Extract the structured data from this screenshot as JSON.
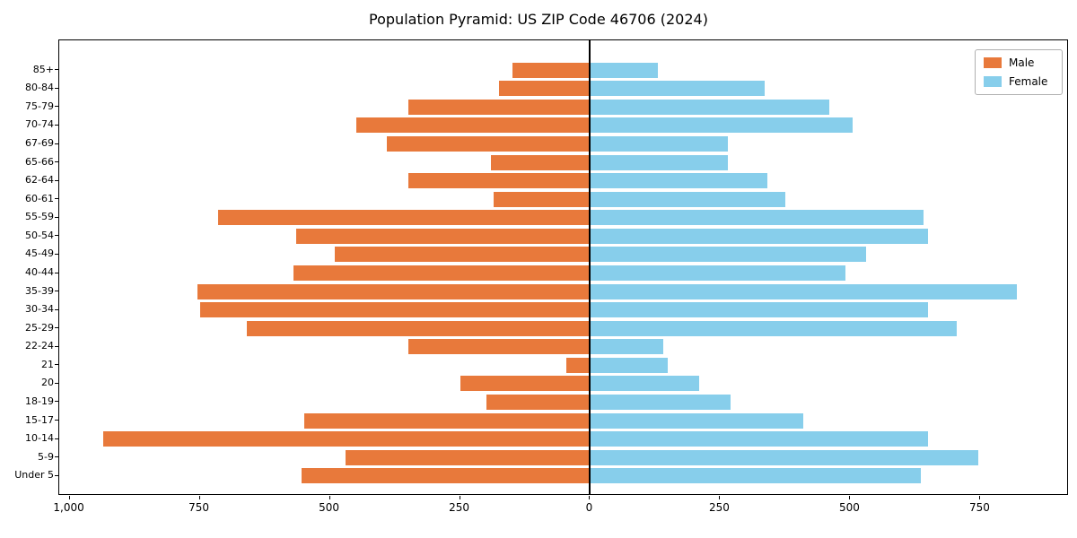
{
  "colors": {
    "male": "#e8793b",
    "female": "#87ceeb",
    "axis": "#000000",
    "legend_border": "#b0b0b0"
  },
  "chart_data": {
    "type": "bar",
    "subtype": "population-pyramid",
    "title": "Population Pyramid: US ZIP Code 46706 (2024)",
    "orientation": "horizontal",
    "categories_top_to_bottom": true,
    "categories": [
      "85+",
      "80-84",
      "75-79",
      "70-74",
      "67-69",
      "65-66",
      "62-64",
      "60-61",
      "55-59",
      "50-54",
      "45-49",
      "40-44",
      "35-39",
      "30-34",
      "25-29",
      "22-24",
      "21",
      "20",
      "18-19",
      "15-17",
      "10-14",
      "5-9",
      "Under 5"
    ],
    "series": [
      {
        "name": "Male",
        "color": "#e8793b",
        "values": [
          150,
          175,
          350,
          450,
          390,
          190,
          350,
          185,
          715,
          565,
          490,
          570,
          755,
          750,
          660,
          350,
          45,
          250,
          200,
          550,
          935,
          470,
          555
        ]
      },
      {
        "name": "Female",
        "color": "#87ceeb",
        "values": [
          130,
          335,
          460,
          505,
          265,
          265,
          340,
          375,
          640,
          650,
          530,
          490,
          820,
          650,
          705,
          140,
          150,
          210,
          270,
          410,
          650,
          745,
          635
        ]
      }
    ],
    "x_ticks": [
      "1,000",
      "750",
      "500",
      "250",
      "0",
      "250",
      "500",
      "750"
    ],
    "x_tick_values": [
      -1000,
      -750,
      -500,
      -250,
      0,
      250,
      500,
      750
    ],
    "xlim": [
      -1020,
      920
    ],
    "grid": false,
    "legend_position": "upper right",
    "zero_axis_line": true
  }
}
